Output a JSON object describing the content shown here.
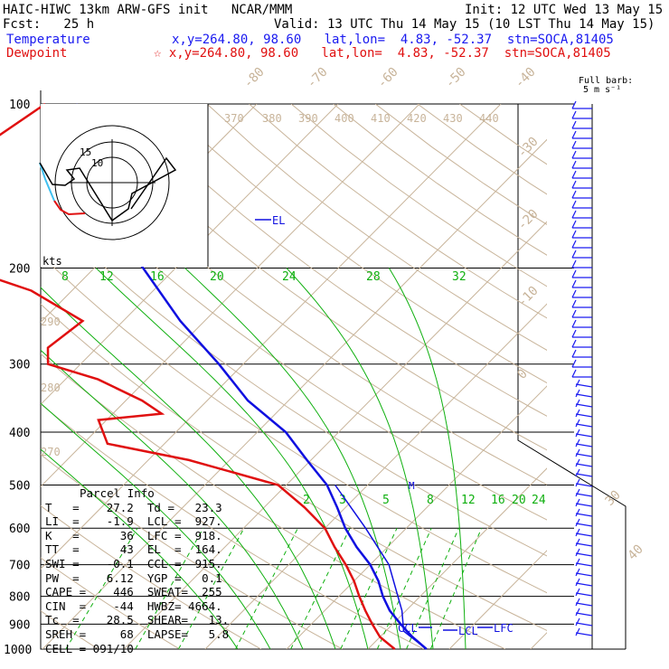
{
  "header": {
    "model_line": "HAIC-HIWC 13km ARW-GFS init   NCAR/MMM",
    "init_line": "Init: 12 UTC Wed 13 May 15",
    "fcst_line": "Fcst:   25 h",
    "valid_line": "Valid: 13 UTC Thu 14 May 15 (10 LST Thu 14 May 15)",
    "temp_label": "Temperature",
    "temp_info": "x,y=264.80, 98.60   lat,lon=  4.83, -52.37  stn=SOCA,81405",
    "dew_label": "Dewpoint",
    "dew_info": "☆ x,y=264.80, 98.60   lat,lon=  4.83, -52.37  stn=SOCA,81405",
    "barb_legend": "Full barb:",
    "barb_legend_2": "5 m s⁻¹"
  },
  "parcel": {
    "title": "Parcel Info",
    "rows": [
      "T   =    27.2  Td =   23.3",
      "LI  =    -1.9  LCL =  927.",
      "K   =      36  LFC =  918.",
      "TT  =      43  EL  =  164.",
      "SWI =    -0.1  CCL =  915.",
      "PW  =    6.12  YGP =   0.1",
      "CAPE =    446  SWEAT=  255",
      "CIN  =    -44  HWBZ= 4664.",
      "Tc  =    28.5  SHEAR=   13.",
      "SREH =     68  LAPSE=   5.8",
      "CELL = 091/10"
    ]
  },
  "chart_data": {
    "type": "skew-t",
    "pressure_levels_hpa": [
      100,
      200,
      300,
      400,
      500,
      600,
      700,
      800,
      900,
      1000
    ],
    "isotherm_labels_c": [
      "-80",
      "-70",
      "-60",
      "-50",
      "-40",
      "-30",
      "-20",
      "-10",
      "0",
      "30",
      "40"
    ],
    "theta_labels_k": [
      "370",
      "380",
      "390",
      "400",
      "410",
      "420",
      "430",
      "440",
      "290",
      "280",
      "270"
    ],
    "mixing_ratio_labels_upper": [
      "8",
      "12",
      "16",
      "20",
      "24",
      "28",
      "32"
    ],
    "mixing_ratio_labels_lower": [
      "2",
      "3",
      "5",
      "8",
      "12",
      "16",
      "20",
      "24"
    ],
    "hodograph": {
      "speed_unit": "kts",
      "ring_labels": [
        "15",
        "10"
      ]
    },
    "annotations": {
      "el": "EL",
      "ccl": "CCL",
      "lcl": "LCL",
      "lfc": "LFC",
      "m": "M"
    },
    "temperature_profile": [
      {
        "p": 1000,
        "t": 27.2
      },
      {
        "p": 950,
        "t": 24.0
      },
      {
        "p": 925,
        "t": 22.5
      },
      {
        "p": 900,
        "t": 21.0
      },
      {
        "p": 850,
        "t": 18.0
      },
      {
        "p": 800,
        "t": 15.4
      },
      {
        "p": 750,
        "t": 13.0
      },
      {
        "p": 700,
        "t": 10.0
      },
      {
        "p": 650,
        "t": 6.2
      },
      {
        "p": 600,
        "t": 2.5
      },
      {
        "p": 550,
        "t": -1.0
      },
      {
        "p": 500,
        "t": -5.0
      },
      {
        "p": 450,
        "t": -10.5
      },
      {
        "p": 400,
        "t": -16.5
      },
      {
        "p": 350,
        "t": -25.0
      },
      {
        "p": 300,
        "t": -33.0
      },
      {
        "p": 250,
        "t": -43.0
      },
      {
        "p": 200,
        "t": -54.0
      },
      {
        "p": 165,
        "t": -64.0
      },
      {
        "p": 140,
        "t": -72.0
      },
      {
        "p": 120,
        "t": -78.5
      },
      {
        "p": 100,
        "t": -82.0
      }
    ],
    "dewpoint_profile": [
      {
        "p": 1000,
        "t": 23.3
      },
      {
        "p": 950,
        "t": 20.0
      },
      {
        "p": 900,
        "t": 17.5
      },
      {
        "p": 850,
        "t": 15.0
      },
      {
        "p": 800,
        "t": 12.5
      },
      {
        "p": 750,
        "t": 10.0
      },
      {
        "p": 700,
        "t": 7.0
      },
      {
        "p": 650,
        "t": 3.5
      },
      {
        "p": 600,
        "t": 0.0
      },
      {
        "p": 550,
        "t": -5.0
      },
      {
        "p": 500,
        "t": -11.0
      },
      {
        "p": 450,
        "t": -25.0
      },
      {
        "p": 420,
        "t": -37.0
      },
      {
        "p": 380,
        "t": -41.0
      },
      {
        "p": 370,
        "t": -34.0
      },
      {
        "p": 350,
        "t": -38.0
      },
      {
        "p": 320,
        "t": -46.0
      },
      {
        "p": 300,
        "t": -54.0
      },
      {
        "p": 280,
        "t": -56.0
      },
      {
        "p": 250,
        "t": -55.0
      },
      {
        "p": 220,
        "t": -65.0
      },
      {
        "p": 200,
        "t": -76.0
      },
      {
        "p": 180,
        "t": -82.0
      },
      {
        "p": 160,
        "t": -84.0
      },
      {
        "p": 140,
        "t": -86.0
      },
      {
        "p": 120,
        "t": -88.5
      },
      {
        "p": 100,
        "t": -86.0
      }
    ],
    "parcel_path": [
      {
        "p": 1000,
        "t": 27.2
      },
      {
        "p": 927,
        "t": 22.2
      },
      {
        "p": 850,
        "t": 19.5
      },
      {
        "p": 700,
        "t": 12.3
      },
      {
        "p": 600,
        "t": 5.0
      },
      {
        "p": 500,
        "t": -4.0
      }
    ]
  },
  "colors": {
    "temperature": "#1010e0",
    "dewpoint": "#e01010",
    "isotherm": "#c8b49a",
    "mixing_ratio": "#10b010",
    "moist_adiabat": "#10b010",
    "hodo_black": "#000000",
    "hodo_red": "#e01010",
    "hodo_cyan": "#40c0f0",
    "barb_blue": "#1a1af0"
  }
}
